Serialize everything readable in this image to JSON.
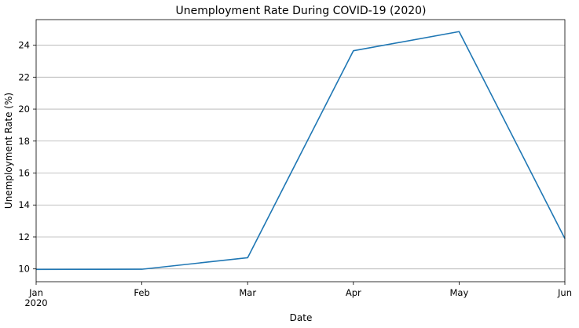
{
  "chart_data": {
    "type": "line",
    "title": "Unemployment Rate During COVID-19 (2020)",
    "xlabel": "Date",
    "ylabel": "Unemployment Rate (%)",
    "x": [
      "2020-01",
      "2020-02",
      "2020-03",
      "2020-04",
      "2020-05",
      "2020-06"
    ],
    "x_tick_labels": [
      "Jan",
      "Feb",
      "Mar",
      "Apr",
      "May",
      "Jun"
    ],
    "x_tick_sublabel": "2020",
    "y_ticks": [
      10,
      12,
      14,
      16,
      18,
      20,
      22,
      24
    ],
    "ylim": [
      9.2,
      25.6
    ],
    "grid": "y",
    "series": [
      {
        "color": "#1f77b4",
        "values": [
          9.97,
          9.98,
          10.7,
          23.65,
          24.85,
          11.9
        ]
      }
    ]
  }
}
